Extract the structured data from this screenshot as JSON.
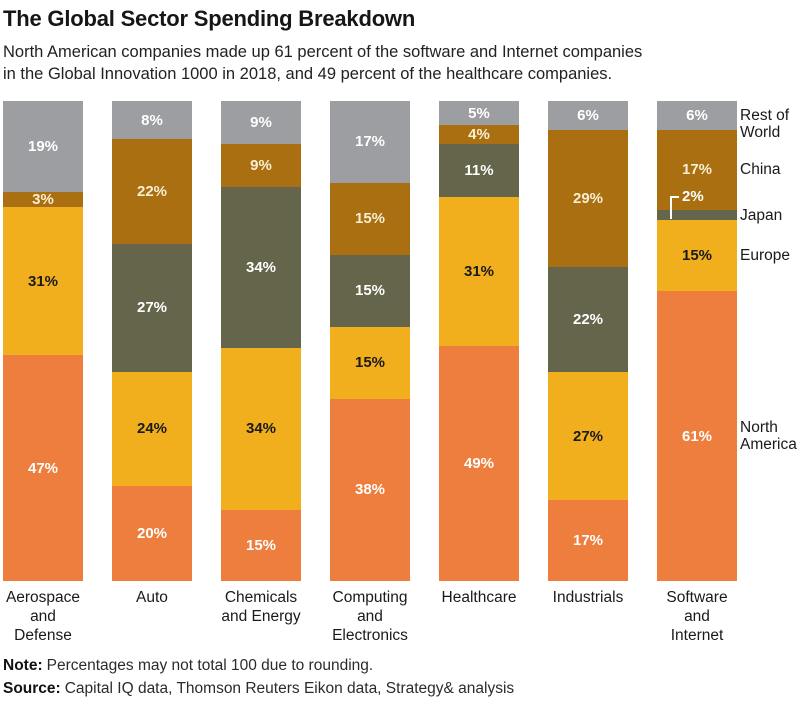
{
  "header": {
    "title": "The Global Sector Spending Breakdown",
    "subtitle_lines": [
      "North American companies made up 61 percent of the software and Internet companies",
      "in the Global Innovation 1000 in 2018, and 49 percent of the healthcare companies."
    ]
  },
  "chart_data": {
    "type": "bar",
    "variant": "100-percent-stacked",
    "unit": "%",
    "categories": [
      "Aerospace and Defense",
      "Auto",
      "Chemicals and Energy",
      "Computing and Electronics",
      "Healthcare",
      "Industrials",
      "Software and Internet"
    ],
    "category_label_lines": [
      [
        "Aerospace",
        "and",
        "Defense"
      ],
      [
        "Auto"
      ],
      [
        "Chemicals",
        "and Energy"
      ],
      [
        "Computing",
        "and",
        "Electronics"
      ],
      [
        "Healthcare"
      ],
      [
        "Industrials"
      ],
      [
        "Software",
        "and",
        "Internet"
      ]
    ],
    "stack_order_top_to_bottom": [
      "Rest of World",
      "China",
      "Japan",
      "Europe",
      "North America"
    ],
    "series": [
      {
        "name": "Rest of World",
        "color": "#9C9EA1",
        "label_color": "#FFFFFF",
        "values": [
          19,
          8,
          9,
          17,
          5,
          6,
          6
        ]
      },
      {
        "name": "China",
        "color": "#AA6F10",
        "label_color": "#F8EFD3",
        "values": [
          3,
          22,
          9,
          15,
          4,
          29,
          17
        ]
      },
      {
        "name": "Japan",
        "color": "#64654A",
        "label_color": "#FFFFFF",
        "values": [
          0,
          27,
          34,
          15,
          11,
          22,
          2
        ]
      },
      {
        "name": "Europe",
        "color": "#F2AF1D",
        "label_color": "#1A1A1A",
        "values": [
          31,
          24,
          34,
          15,
          31,
          27,
          15
        ]
      },
      {
        "name": "North America",
        "color": "#EE7E3D",
        "label_color": "#FFFFFF",
        "values": [
          47,
          20,
          15,
          38,
          49,
          17,
          61
        ]
      }
    ],
    "legend_labels": [
      [
        "Rest of",
        "World"
      ],
      [
        "China"
      ],
      [
        "Japan"
      ],
      [
        "Europe"
      ],
      [
        "North",
        "America"
      ]
    ],
    "legend_position": "right",
    "callouts": [
      {
        "category": "Software and Internet",
        "series": "Japan",
        "label": "2%"
      }
    ],
    "value_suffix": "%"
  },
  "footer": {
    "note_label": "Note:",
    "note_text": "Percentages may not total 100 due to rounding.",
    "source_label": "Source:",
    "source_text": "Capital IQ data, Thomson Reuters Eikon data, Strategy& analysis"
  }
}
